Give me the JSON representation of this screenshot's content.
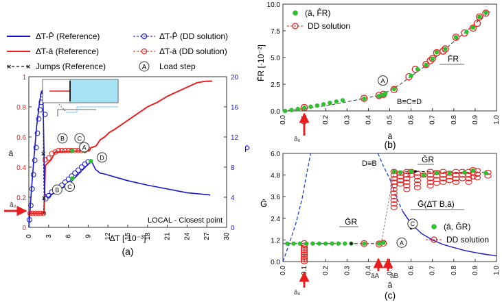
{
  "colors": {
    "ref_P": "#1414d2",
    "ref_a": "#e81e1e",
    "dd": "#e81e1e",
    "green": "#2ec02e",
    "inset_fill": "#a7e3f5",
    "jumps": "#333333",
    "dash": "#333333",
    "blue_dash": "#1f3fd0",
    "axis_right_blue": "#1414d2"
  },
  "legend_a": {
    "ref_P": "Δ̄T-P̄ (Reference)",
    "ref_a": "Δ̄T-ā (Reference)",
    "jumps": "Jumps (Reference)",
    "dd_P": "Δ̄T-P̄ (DD solution)",
    "dd_a": "Δ̄T-ā (DD solution)",
    "load_step_glyph": "A",
    "load_step": "Load step"
  },
  "chart_data": [
    {
      "id": "a",
      "type": "line",
      "panel_label": "(a)",
      "xlabel": "Δ̄T [·10⁻³]",
      "ylabel_left": "ā",
      "ylabel_right": "P̄",
      "xlim": [
        0,
        30
      ],
      "ylim_left": [
        0,
        1
      ],
      "ylim_right": [
        0,
        20
      ],
      "xticks": [
        0,
        3,
        6,
        9,
        12,
        15,
        18,
        21,
        24,
        27,
        30
      ],
      "yticks_left": [
        0,
        0.2,
        0.4,
        0.6,
        0.8,
        1
      ],
      "ytick_labels_left": [
        "0",
        "0.2",
        "0.4",
        "0.6",
        "0.8",
        "1"
      ],
      "yticks_right": [
        0,
        4,
        8,
        12,
        16,
        20
      ],
      "a0_label": "ā₀",
      "annotation": "LOCAL - Closest point",
      "load_labels": [
        {
          "id": "A",
          "x": 8.4,
          "y": 0.532
        },
        {
          "id": "B",
          "x": 5.1,
          "y": 0.591
        },
        {
          "id": "C",
          "x": 7.7,
          "y": 0.591
        },
        {
          "id": "D",
          "x": 11.1,
          "y": 0.464
        },
        {
          "id": "B",
          "x": 4.3,
          "y": 0.25
        },
        {
          "id": "C",
          "x": 6.2,
          "y": 0.27
        }
      ],
      "ref_a_curve": [
        [
          2.3,
          0.093
        ],
        [
          2.5,
          0.41
        ],
        [
          3.4,
          0.45
        ],
        [
          4.0,
          0.5
        ],
        [
          9.0,
          0.51
        ],
        [
          9.5,
          0.53
        ],
        [
          10.2,
          0.54
        ],
        [
          10.8,
          0.58
        ],
        [
          11.5,
          0.6
        ],
        [
          12.2,
          0.63
        ],
        [
          13.0,
          0.65
        ],
        [
          14.0,
          0.68
        ],
        [
          15.0,
          0.71
        ],
        [
          16.0,
          0.74
        ],
        [
          17.0,
          0.77
        ],
        [
          18.0,
          0.8
        ],
        [
          19.5,
          0.83
        ],
        [
          21.0,
          0.87
        ],
        [
          22.5,
          0.9
        ],
        [
          24.0,
          0.93
        ],
        [
          25.5,
          0.96
        ],
        [
          26.8,
          0.97
        ],
        [
          27.8,
          0.97
        ]
      ],
      "ref_a_initial": [
        [
          0.0,
          0.093
        ],
        [
          2.3,
          0.093
        ]
      ],
      "ref_P_curve": [
        [
          0,
          0
        ],
        [
          0.4,
          5.0
        ],
        [
          0.8,
          9.5
        ],
        [
          1.2,
          13.5
        ],
        [
          1.6,
          16.5
        ],
        [
          1.9,
          18.0
        ],
        [
          2.1,
          18.2
        ],
        [
          2.2,
          15.0
        ],
        [
          2.3,
          10.0
        ],
        [
          2.4,
          4.5
        ],
        [
          2.9,
          3.9
        ],
        [
          3.8,
          4.6
        ],
        [
          6.0,
          5.7
        ],
        [
          8.0,
          7.5
        ],
        [
          9.5,
          8.8
        ],
        [
          10.1,
          7.7
        ],
        [
          10.8,
          7.2
        ],
        [
          11.4,
          7.1
        ],
        [
          13.0,
          6.7
        ],
        [
          15.0,
          6.2
        ],
        [
          18.0,
          5.6
        ],
        [
          21.0,
          5.1
        ],
        [
          24.0,
          4.6
        ],
        [
          27.5,
          4.3
        ]
      ],
      "jumps_series": [
        [
          2.2,
          18.0
        ],
        [
          2.2,
          9.8
        ],
        [
          2.3,
          3.9
        ],
        [
          2.25,
          1.9
        ]
      ],
      "dd_a_points": [
        [
          0.2,
          0.093
        ],
        [
          0.6,
          0.093
        ],
        [
          1.0,
          0.093
        ],
        [
          1.4,
          0.093
        ],
        [
          1.8,
          0.093
        ],
        [
          2.2,
          0.093
        ],
        [
          2.5,
          0.45
        ],
        [
          3.0,
          0.46
        ],
        [
          3.5,
          0.49
        ],
        [
          4.0,
          0.5
        ],
        [
          4.5,
          0.51
        ],
        [
          5.0,
          0.51
        ],
        [
          5.5,
          0.51
        ],
        [
          6.0,
          0.51
        ],
        [
          6.5,
          0.51
        ],
        [
          7.0,
          0.51
        ],
        [
          7.5,
          0.51
        ],
        [
          8.0,
          0.51
        ],
        [
          8.5,
          0.51
        ],
        [
          9.0,
          0.52
        ]
      ],
      "dd_P_points": [
        [
          0.1,
          1.0
        ],
        [
          0.3,
          2.9
        ],
        [
          0.5,
          5.1
        ],
        [
          0.7,
          7.0
        ],
        [
          0.9,
          8.9
        ],
        [
          1.1,
          10.6
        ],
        [
          1.3,
          12.5
        ],
        [
          1.5,
          14.4
        ],
        [
          1.7,
          15.6
        ],
        [
          1.9,
          16.6
        ],
        [
          2.1,
          17.6
        ],
        [
          2.3,
          18.0
        ],
        [
          2.45,
          15.0
        ],
        [
          2.55,
          3.8
        ],
        [
          3.0,
          4.2
        ],
        [
          3.5,
          4.7
        ],
        [
          4.0,
          5.0
        ],
        [
          4.5,
          5.3
        ],
        [
          5.0,
          5.6
        ],
        [
          5.5,
          6.0
        ],
        [
          6.0,
          6.4
        ],
        [
          6.5,
          6.8
        ],
        [
          7.0,
          7.2
        ],
        [
          7.5,
          7.6
        ],
        [
          8.0,
          8.0
        ],
        [
          8.5,
          8.4
        ],
        [
          9.0,
          8.7
        ]
      ],
      "green_points": [
        [
          6.6,
          0.51
        ],
        [
          8.4,
          0.51
        ],
        [
          6.6,
          6.5
        ],
        [
          9.4,
          8.8
        ]
      ],
      "inset": {
        "type": "schematic"
      }
    },
    {
      "id": "b",
      "type": "scatter",
      "panel_label": "(b)",
      "xlabel": "ā",
      "ylabel": "F̄R [·10⁻²]",
      "xlim": [
        0,
        1
      ],
      "ylim": [
        0,
        10
      ],
      "xticks": [
        0,
        0.1,
        0.2,
        0.3,
        0.4,
        0.5,
        0.6,
        0.7,
        0.8,
        0.9,
        1
      ],
      "xtick_labels": [
        "0.0",
        "0.1",
        "0.2",
        "0.3",
        "0.4",
        "0.5",
        "0.6",
        "0.7",
        "0.8",
        "0.9",
        "1.0"
      ],
      "yticks": [
        0,
        2.5,
        5,
        7.5,
        10
      ],
      "ytick_labels": [
        "0.0",
        "2.5",
        "5.0",
        "7.5",
        "10.0"
      ],
      "legend": [
        "(â, F̂R)",
        "DD solution"
      ],
      "a0_label": "ā₀",
      "curve_label": "F̄R",
      "equal_label": "B≡C≡D",
      "load_labels": [
        {
          "id": "A",
          "x": 0.468,
          "y": 1.95
        }
      ],
      "green_points": [
        [
          0.01,
          0.0
        ],
        [
          0.04,
          0.08
        ],
        [
          0.07,
          0.18
        ],
        [
          0.1,
          0.3
        ],
        [
          0.13,
          0.4
        ],
        [
          0.16,
          0.5
        ],
        [
          0.19,
          0.62
        ],
        [
          0.22,
          0.76
        ],
        [
          0.25,
          0.88
        ],
        [
          0.28,
          1.0
        ],
        [
          0.38,
          1.15
        ],
        [
          0.45,
          1.4
        ],
        [
          0.47,
          1.5
        ],
        [
          0.48,
          1.65
        ],
        [
          0.52,
          2.05
        ],
        [
          0.6,
          3.3
        ],
        [
          0.63,
          3.9
        ],
        [
          0.67,
          4.3
        ],
        [
          0.7,
          4.9
        ],
        [
          0.72,
          5.5
        ],
        [
          0.76,
          5.8
        ],
        [
          0.81,
          6.9
        ],
        [
          0.86,
          7.4
        ],
        [
          0.89,
          7.8
        ],
        [
          0.92,
          8.8
        ],
        [
          0.95,
          9.2
        ]
      ],
      "dd_points": [
        [
          0.1,
          0.32
        ],
        [
          0.38,
          1.18
        ],
        [
          0.45,
          1.45
        ],
        [
          0.47,
          1.55
        ],
        [
          0.52,
          2.0
        ],
        [
          0.59,
          3.2
        ],
        [
          0.62,
          3.9
        ],
        [
          0.67,
          4.35
        ],
        [
          0.69,
          4.7
        ],
        [
          0.7,
          4.9
        ],
        [
          0.72,
          5.45
        ],
        [
          0.75,
          5.6
        ],
        [
          0.76,
          5.8
        ],
        [
          0.81,
          6.9
        ],
        [
          0.85,
          7.3
        ],
        [
          0.89,
          7.75
        ],
        [
          0.91,
          8.2
        ],
        [
          0.92,
          8.8
        ],
        [
          0.95,
          9.15
        ]
      ],
      "fit_curve": [
        [
          0.0,
          0.0
        ],
        [
          0.1,
          0.22
        ],
        [
          0.2,
          0.48
        ],
        [
          0.3,
          0.85
        ],
        [
          0.4,
          1.25
        ],
        [
          0.45,
          1.45
        ],
        [
          0.5,
          1.9
        ],
        [
          0.55,
          2.5
        ],
        [
          0.6,
          3.25
        ],
        [
          0.65,
          3.95
        ],
        [
          0.7,
          4.8
        ],
        [
          0.75,
          5.6
        ],
        [
          0.8,
          6.5
        ],
        [
          0.85,
          7.3
        ],
        [
          0.9,
          8.2
        ],
        [
          0.95,
          9.0
        ],
        [
          0.97,
          9.3
        ]
      ]
    },
    {
      "id": "c",
      "type": "scatter",
      "panel_label": "(c)",
      "xlabel": "ā",
      "ylabel": "Ḡ",
      "xlim": [
        0,
        1
      ],
      "ylim": [
        0,
        6
      ],
      "xticks": [
        0,
        0.1,
        0.2,
        0.3,
        0.4,
        0.5,
        0.6,
        0.7,
        0.8,
        0.9,
        1
      ],
      "xtick_labels": [
        "0.0",
        "0.1",
        "0.2",
        "0.3",
        "0.4",
        "0.5",
        "0.6",
        "0.7",
        "0.8",
        "0.9",
        "1.0"
      ],
      "yticks": [
        0,
        1.2,
        2.4,
        3.6,
        4.8,
        6
      ],
      "ytick_labels": [
        "0.0",
        "1.2",
        "2.4",
        "3.6",
        "4.8",
        "6.0"
      ],
      "legend": [
        "(â, ĜR)",
        "DD solution"
      ],
      "a0_label": "ā₀",
      "aA_label": "āA",
      "aB_label": "āB",
      "GR_label_low": "ḠR",
      "GR_label_high": "ḠR",
      "G_curve_label": "Ḡ(Δ̄T B,ā)",
      "DB_label": "D≡B",
      "load_labels": [
        {
          "id": "A",
          "x": 0.524,
          "y": 1.05
        },
        {
          "id": "C",
          "x": 0.575,
          "y": 2.1
        }
      ],
      "G_curve": [
        [
          0.445,
          6.0
        ],
        [
          0.47,
          5.3
        ],
        [
          0.5,
          4.6
        ],
        [
          0.53,
          3.6
        ],
        [
          0.56,
          2.8
        ],
        [
          0.6,
          2.1
        ],
        [
          0.65,
          1.55
        ],
        [
          0.7,
          1.2
        ],
        [
          0.75,
          0.95
        ],
        [
          0.8,
          0.78
        ],
        [
          0.85,
          0.62
        ],
        [
          0.9,
          0.5
        ],
        [
          0.95,
          0.4
        ],
        [
          1.0,
          0.32
        ]
      ],
      "blue_dash": [
        [
          0.0,
          0.0
        ],
        [
          0.03,
          1.0
        ],
        [
          0.06,
          2.1
        ],
        [
          0.09,
          3.5
        ],
        [
          0.11,
          4.8
        ],
        [
          0.13,
          6.0
        ]
      ],
      "GR_low": [
        [
          0.0,
          1.0
        ],
        [
          0.46,
          1.0
        ]
      ],
      "GR_high": [
        [
          0.52,
          5.0
        ],
        [
          0.62,
          5.0
        ],
        [
          0.8,
          4.95
        ],
        [
          0.96,
          4.95
        ]
      ],
      "green_points": [
        [
          0.02,
          1.0
        ],
        [
          0.05,
          1.0
        ],
        [
          0.08,
          1.0
        ],
        [
          0.11,
          1.0
        ],
        [
          0.14,
          1.0
        ],
        [
          0.17,
          1.0
        ],
        [
          0.2,
          1.0
        ],
        [
          0.23,
          1.0
        ],
        [
          0.26,
          1.0
        ],
        [
          0.29,
          1.0
        ],
        [
          0.32,
          1.0
        ],
        [
          0.38,
          1.0
        ],
        [
          0.45,
          1.0
        ],
        [
          0.47,
          1.05
        ],
        [
          0.52,
          5.0
        ],
        [
          0.55,
          4.95
        ],
        [
          0.6,
          5.0
        ],
        [
          0.66,
          4.8
        ],
        [
          0.72,
          4.9
        ],
        [
          0.78,
          4.9
        ],
        [
          0.85,
          4.95
        ],
        [
          0.89,
          5.05
        ],
        [
          0.95,
          4.9
        ]
      ],
      "dd_low_points": [
        [
          0.1,
          1.0
        ],
        [
          0.38,
          1.0
        ],
        [
          0.45,
          0.98
        ],
        [
          0.47,
          1.02
        ]
      ],
      "dd_fan_a0": {
        "x": 0.1,
        "ys": [
          0.9,
          0.8,
          0.7,
          0.6,
          0.5,
          0.4,
          0.3,
          0.2,
          0.1,
          0.0
        ]
      },
      "dd_fan_high": [
        {
          "x": 0.52,
          "ys": [
            5.0,
            4.8,
            4.6,
            4.4,
            4.2,
            4.0,
            3.8,
            3.6,
            3.4,
            3.2,
            3.0
          ]
        },
        {
          "x": 0.55,
          "ys": [
            4.9,
            4.7,
            4.5,
            4.3
          ]
        },
        {
          "x": 0.58,
          "ys": [
            5.0,
            4.8,
            4.6,
            4.4,
            4.2,
            4.0
          ]
        },
        {
          "x": 0.6,
          "ys": [
            5.0,
            4.8
          ]
        },
        {
          "x": 0.63,
          "ys": [
            4.9,
            4.7,
            4.5,
            4.3,
            4.1
          ]
        },
        {
          "x": 0.66,
          "ys": [
            4.8
          ]
        },
        {
          "x": 0.69,
          "ys": [
            5.0,
            4.8,
            4.6,
            4.4,
            4.2
          ]
        },
        {
          "x": 0.72,
          "ys": [
            4.95,
            4.75,
            4.55,
            4.35
          ]
        },
        {
          "x": 0.75,
          "ys": [
            5.0,
            4.8,
            4.6,
            4.4
          ]
        },
        {
          "x": 0.78,
          "ys": [
            4.9,
            4.7,
            4.5
          ]
        },
        {
          "x": 0.81,
          "ys": [
            5.0,
            4.8,
            4.6,
            4.4
          ]
        },
        {
          "x": 0.84,
          "ys": [
            5.0,
            4.8,
            4.6
          ]
        },
        {
          "x": 0.87,
          "ys": [
            5.0,
            4.8,
            4.6,
            4.4
          ]
        },
        {
          "x": 0.89,
          "ys": [
            5.1,
            4.9,
            4.7
          ]
        },
        {
          "x": 0.91,
          "ys": [
            5.05,
            4.85,
            4.65
          ]
        },
        {
          "x": 0.96,
          "ys": [
            4.95,
            4.75
          ]
        }
      ]
    }
  ]
}
